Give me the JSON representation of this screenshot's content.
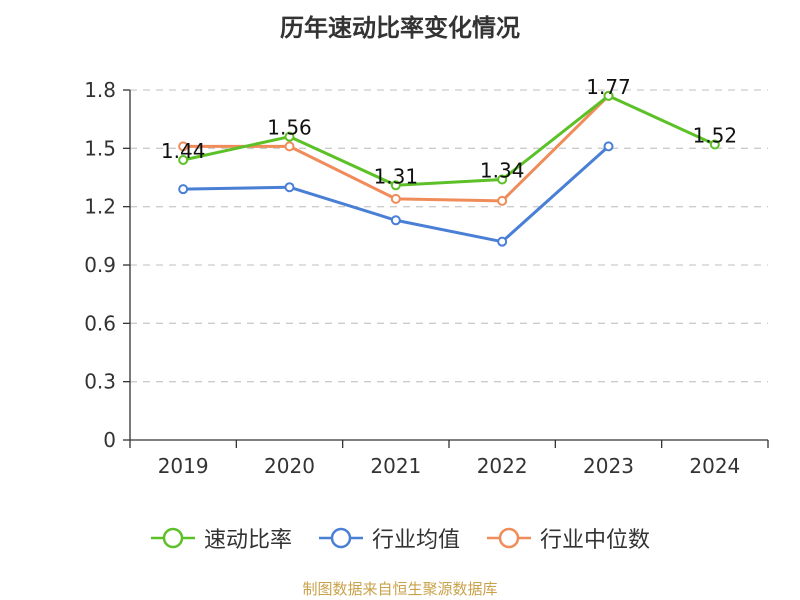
{
  "chart_data": {
    "type": "line",
    "title": "历年速动比率变化情况",
    "categories": [
      "2019",
      "2020",
      "2021",
      "2022",
      "2023",
      "2024"
    ],
    "ylim": [
      0,
      1.8
    ],
    "yticks": [
      "0",
      "0.3",
      "0.6",
      "0.9",
      "1.2",
      "1.5",
      "1.8"
    ],
    "grid": true,
    "legend_position": "bottom",
    "series": [
      {
        "name": "速动比率",
        "color": "#5cc127",
        "values": [
          1.44,
          1.56,
          1.31,
          1.34,
          1.77,
          1.52
        ],
        "labels": true
      },
      {
        "name": "行业均值",
        "color": "#4a7fd6",
        "values": [
          1.29,
          1.3,
          1.13,
          1.02,
          1.51,
          null
        ],
        "labels": false
      },
      {
        "name": "行业中位数",
        "color": "#f08c5a",
        "values": [
          1.51,
          1.51,
          1.24,
          1.23,
          1.77,
          null
        ],
        "labels": false
      }
    ]
  },
  "source": "制图数据来自恒生聚源数据库"
}
